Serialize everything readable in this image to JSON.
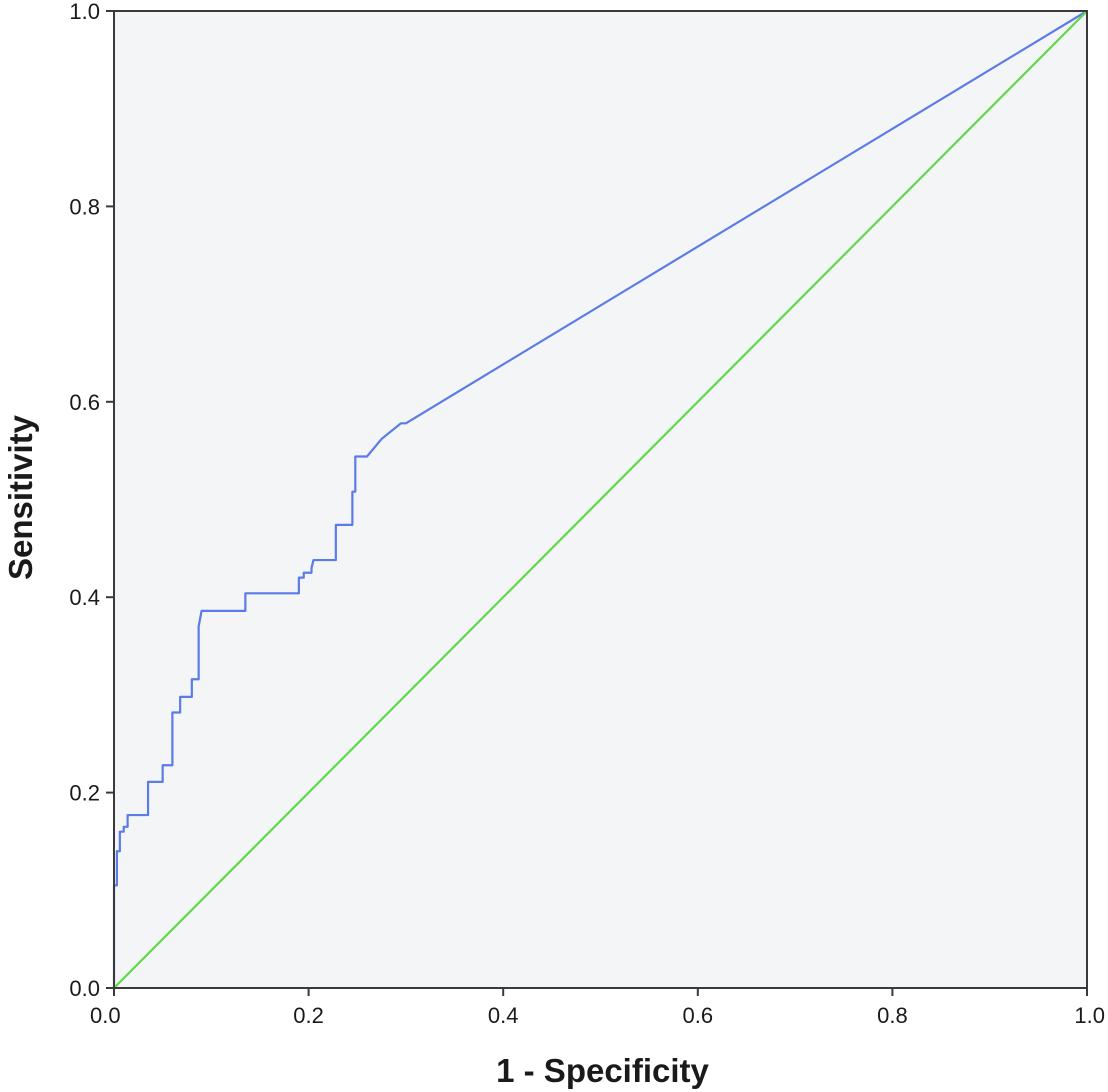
{
  "chart_data": {
    "type": "line",
    "title": "",
    "xlabel": "1 - Specificity",
    "ylabel": "Sensitivity",
    "xlim": [
      0,
      1
    ],
    "ylim": [
      0,
      1
    ],
    "x_ticks": [
      "0.0",
      "0.2",
      "0.4",
      "0.6",
      "0.8",
      "1.0"
    ],
    "y_ticks": [
      "0.0",
      "0.2",
      "0.4",
      "0.6",
      "0.8",
      "1.0"
    ],
    "grid": false,
    "legend": "none",
    "colors": {
      "plot_background": "#f4f5f7",
      "axis": "#3a3a3a",
      "roc_curve": "#5b7be8",
      "reference_line": "#5fd94a"
    },
    "series": [
      {
        "color": "#5b7be8",
        "x": [
          0.0,
          0.0,
          0.003,
          0.003,
          0.006,
          0.006,
          0.01,
          0.01,
          0.014,
          0.014,
          0.035,
          0.035,
          0.05,
          0.05,
          0.06,
          0.06,
          0.068,
          0.068,
          0.08,
          0.08,
          0.087,
          0.087,
          0.09,
          0.095,
          0.135,
          0.135,
          0.19,
          0.19,
          0.195,
          0.195,
          0.203,
          0.203,
          0.205,
          0.228,
          0.228,
          0.245,
          0.245,
          0.248,
          0.248,
          0.26,
          0.275,
          0.295,
          0.3,
          1.0
        ],
        "y": [
          0.0,
          0.105,
          0.105,
          0.14,
          0.14,
          0.16,
          0.16,
          0.165,
          0.165,
          0.177,
          0.177,
          0.211,
          0.211,
          0.228,
          0.228,
          0.282,
          0.282,
          0.298,
          0.298,
          0.316,
          0.316,
          0.37,
          0.386,
          0.386,
          0.386,
          0.404,
          0.404,
          0.42,
          0.42,
          0.425,
          0.425,
          0.43,
          0.438,
          0.438,
          0.474,
          0.474,
          0.508,
          0.508,
          0.544,
          0.544,
          0.562,
          0.578,
          0.578,
          1.0
        ]
      },
      {
        "color": "#5fd94a",
        "x": [
          0.0,
          1.0
        ],
        "y": [
          0.0,
          1.0
        ]
      }
    ]
  }
}
